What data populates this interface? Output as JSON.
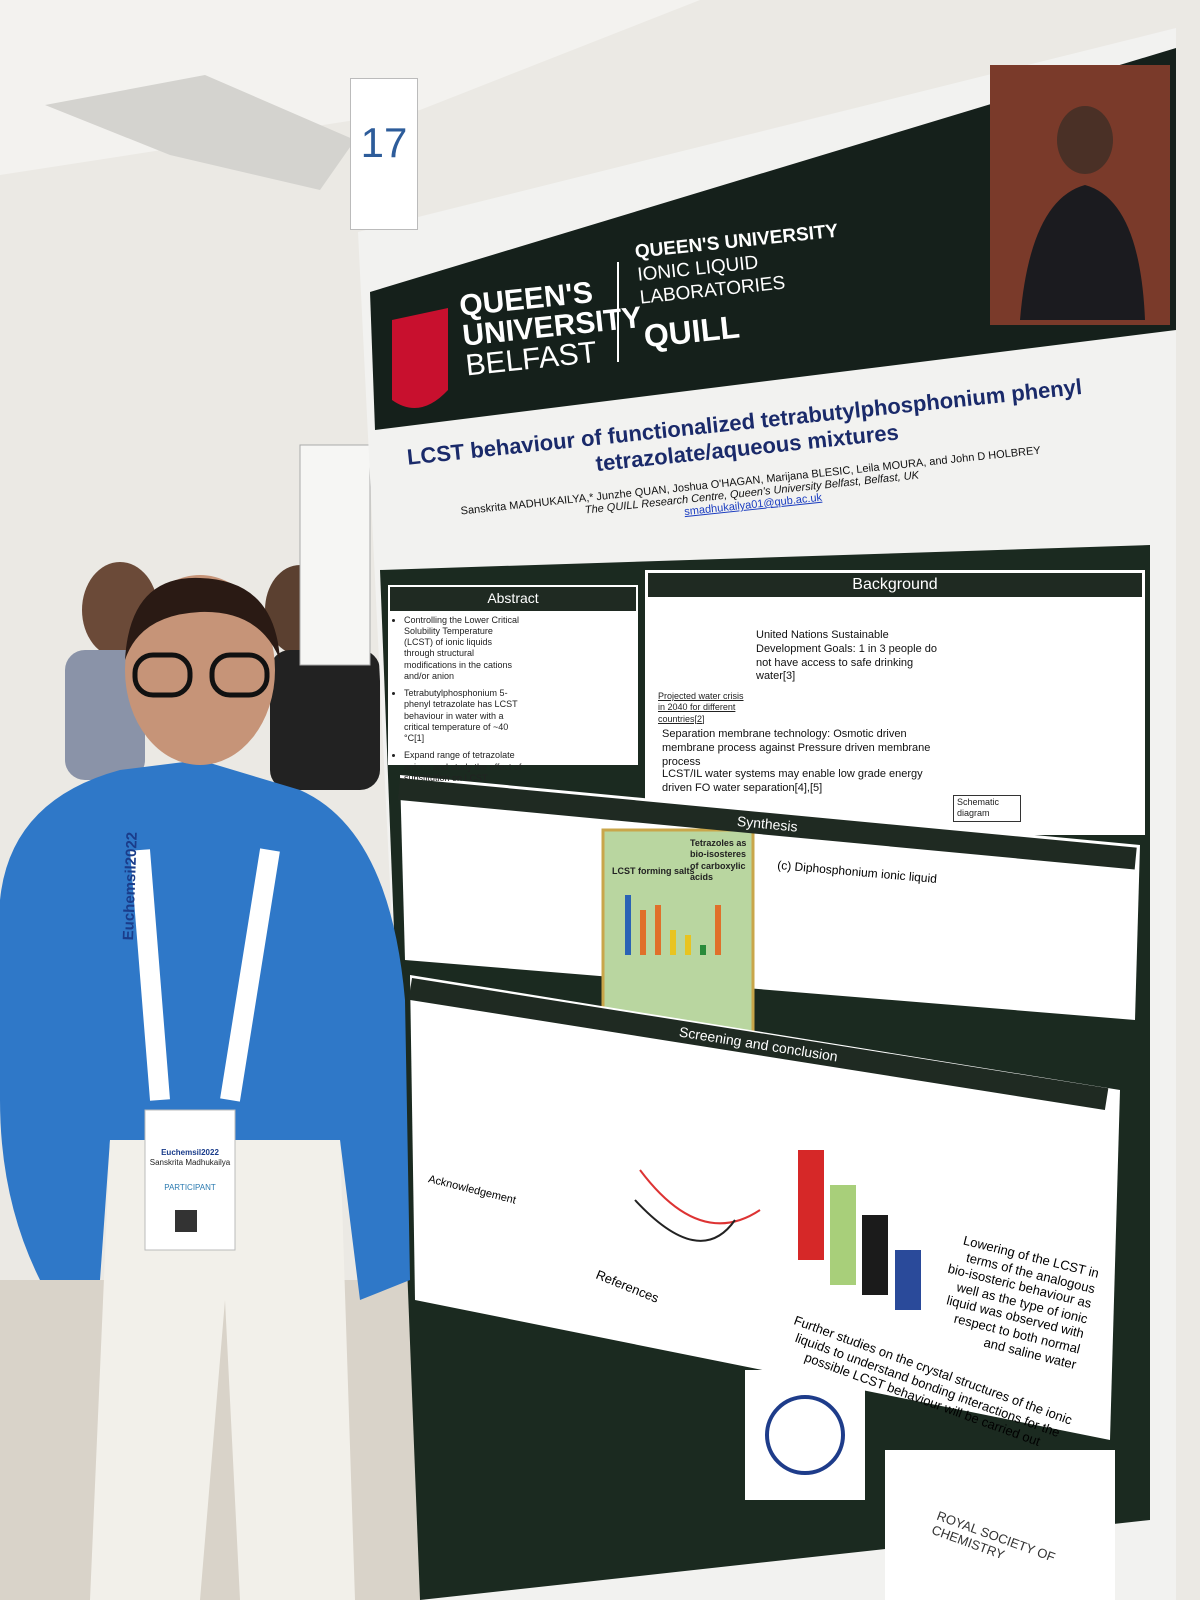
{
  "sign_number": "17",
  "poster": {
    "logo": {
      "line1": "QUEEN'S",
      "line2": "UNIVERSITY",
      "line3": "BELFAST"
    },
    "lab": {
      "line1": "QUEEN'S UNIVERSITY",
      "line2": "IONIC LIQUID",
      "line3": "LABORATORIES",
      "line4": "QUILL"
    },
    "title_lines": [
      "LCST behaviour of functionalized tetrabutylphosphonium phenyl",
      "tetrazolate/aqueous mixtures"
    ],
    "authors": "Sanskrita MADHUKAILYA,* Junzhe QUAN, Joshua O'HAGAN, Marijana BLESIC, Leila MOURA, and John D HOLBREY",
    "affiliation": "The QUILL Research Centre, Queen's University Belfast, Belfast, UK",
    "email": "smadhukailya01@qub.ac.uk",
    "abstract": {
      "heading": "Abstract",
      "bullets": [
        "Controlling the Lower Critical Solubility Temperature (LCST) of ionic liquids through structural modifications in the cations and/or anion",
        "Tetrabutylphosphonium 5-phenyl tetrazolate has LCST behaviour in water with a critical temperature of ~40 °C[1]",
        "Expand range of tetrazolate anions and study the effect of substitution on LCST."
      ]
    },
    "background": {
      "heading": "Background",
      "bullets": [
        "United Nations Sustainable Development Goals: 1 in 3 people do not have access to safe drinking water[3]",
        "Separation membrane technology: Osmotic driven membrane process against Pressure driven membrane process",
        "LCST/IL water systems may enable low grade energy driven FO water separation[4],[5]"
      ],
      "map_caption": "Projected water crisis in 2040 for different countries[2]",
      "diagram_caption": "Schematic diagram"
    },
    "synthesis": {
      "heading": "Synthesis",
      "chart_title": "LCST forming salts",
      "note": "Tetrazoles as bio-isosteres of carboxylic acids",
      "subheading": "(c) Diphosphonium ionic liquid"
    },
    "screening": {
      "heading": "Screening and conclusion",
      "conclusions": [
        "Lowering of the LCST in terms of the analogous bio-isosteric behaviour as well as the type of ionic liquid was observed with respect to both normal and saline water",
        "Further studies on the crystal structures of the ionic liquids to understand bonding interactions for the possible LCST behaviour will be carried out"
      ]
    },
    "acknowledgement": "Acknowledgement",
    "references": "References",
    "footer_logo": "ROYAL SOCIETY OF CHEMISTRY"
  },
  "lanyard": "Euchemsil2022",
  "badge": {
    "event": "Euchemsil2022",
    "name": "Sanskrita Madhukailya",
    "role": "PARTICIPANT"
  }
}
